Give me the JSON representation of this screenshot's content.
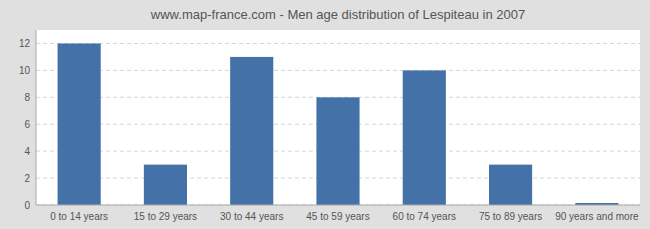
{
  "chart_data": {
    "type": "bar",
    "title": "www.map-france.com - Men age distribution of Lespiteau in 2007",
    "categories": [
      "0 to 14 years",
      "15 to 29 years",
      "30 to 44 years",
      "45 to 59 years",
      "60 to 74 years",
      "75 to 89 years",
      "90 years and more"
    ],
    "values": [
      12,
      3,
      11,
      8,
      10,
      3,
      0.15
    ],
    "color": "#4472a8",
    "ylim": [
      0,
      13
    ],
    "yticks": [
      0,
      2,
      4,
      6,
      8,
      10,
      12
    ],
    "grid": true
  }
}
